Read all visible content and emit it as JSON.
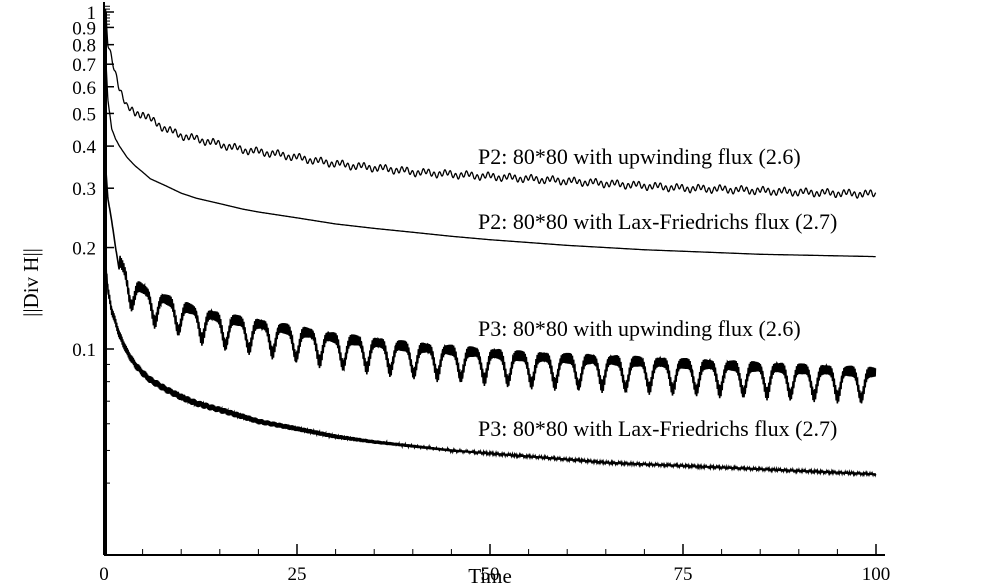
{
  "chart_data": {
    "type": "line",
    "xlabel": "Time",
    "ylabel": "||Div H||",
    "xlim": [
      0,
      100
    ],
    "ylim": [
      0.035,
      1.05
    ],
    "yscale": "log",
    "grid": false,
    "legend": "inline labels next to curves",
    "x_ticks": [
      0,
      25,
      50,
      75,
      100
    ],
    "x_tick_labels": [
      "0",
      "25",
      "50",
      "75",
      "100"
    ],
    "y_ticks": [
      0.1,
      0.2,
      0.3,
      0.4,
      0.5,
      0.6,
      0.7,
      0.8,
      0.9,
      1
    ],
    "y_tick_labels": [
      "0.1",
      "0.2",
      "0.3",
      "0.4",
      "0.5",
      "0.6",
      "0.7",
      "0.8",
      "0.9",
      "1"
    ],
    "series": [
      {
        "name": "P2: 80*80 with upwinding flux (2.6)",
        "x": [
          0.2,
          0.5,
          1,
          2,
          3,
          4,
          5,
          6,
          8,
          10,
          12,
          14,
          16,
          18,
          20,
          22,
          25,
          28,
          30,
          32,
          35,
          38,
          40,
          45,
          50,
          55,
          60,
          65,
          70,
          75,
          80,
          85,
          90,
          95,
          100
        ],
        "y": [
          1.0,
          0.8,
          0.72,
          0.6,
          0.52,
          0.5,
          0.5,
          0.48,
          0.45,
          0.43,
          0.42,
          0.41,
          0.4,
          0.39,
          0.385,
          0.38,
          0.37,
          0.36,
          0.355,
          0.35,
          0.345,
          0.34,
          0.335,
          0.33,
          0.325,
          0.32,
          0.315,
          0.31,
          0.305,
          0.3,
          0.298,
          0.295,
          0.292,
          0.29,
          0.288
        ],
        "oscillation": "small"
      },
      {
        "name": "P2: 80*80 with Lax-Friedrichs flux (2.7)",
        "x": [
          0.2,
          0.5,
          1,
          1.5,
          2,
          3,
          4,
          5,
          6,
          8,
          10,
          12,
          15,
          18,
          20,
          25,
          30,
          35,
          40,
          45,
          50,
          55,
          60,
          65,
          70,
          75,
          80,
          85,
          90,
          95,
          100
        ],
        "y": [
          0.75,
          0.55,
          0.45,
          0.42,
          0.4,
          0.37,
          0.35,
          0.335,
          0.32,
          0.305,
          0.29,
          0.28,
          0.27,
          0.26,
          0.255,
          0.245,
          0.235,
          0.228,
          0.222,
          0.216,
          0.211,
          0.207,
          0.203,
          0.2,
          0.197,
          0.195,
          0.193,
          0.191,
          0.19,
          0.189,
          0.188
        ],
        "oscillation": "none"
      },
      {
        "name": "P3: 80*80 with upwinding flux (2.6)",
        "x": [
          0.2,
          0.5,
          1,
          1.5,
          2,
          3,
          4,
          5,
          6,
          8,
          10,
          12,
          15,
          20,
          25,
          30,
          35,
          40,
          45,
          50,
          55,
          60,
          65,
          70,
          75,
          80,
          85,
          90,
          95,
          100
        ],
        "y": [
          0.35,
          0.28,
          0.24,
          0.2,
          0.17,
          0.155,
          0.145,
          0.14,
          0.135,
          0.13,
          0.125,
          0.12,
          0.115,
          0.11,
          0.105,
          0.1,
          0.097,
          0.094,
          0.092,
          0.09,
          0.088,
          0.087,
          0.086,
          0.085,
          0.084,
          0.083,
          0.082,
          0.081,
          0.08,
          0.079
        ],
        "oscillation": "large"
      },
      {
        "name": "P3: 80*80 with Lax-Friedrichs flux (2.7)",
        "x": [
          0.2,
          0.5,
          1,
          1.5,
          2,
          3,
          4,
          5,
          6,
          8,
          10,
          12,
          15,
          18,
          20,
          25,
          30,
          35,
          40,
          45,
          50,
          55,
          60,
          65,
          70,
          75,
          80,
          85,
          90,
          95,
          100
        ],
        "y": [
          0.18,
          0.15,
          0.13,
          0.12,
          0.11,
          0.098,
          0.09,
          0.085,
          0.081,
          0.076,
          0.072,
          0.069,
          0.066,
          0.063,
          0.061,
          0.058,
          0.055,
          0.053,
          0.0515,
          0.05,
          0.049,
          0.048,
          0.047,
          0.046,
          0.0455,
          0.045,
          0.0445,
          0.044,
          0.0435,
          0.043,
          0.0425
        ],
        "oscillation": "band"
      }
    ]
  }
}
